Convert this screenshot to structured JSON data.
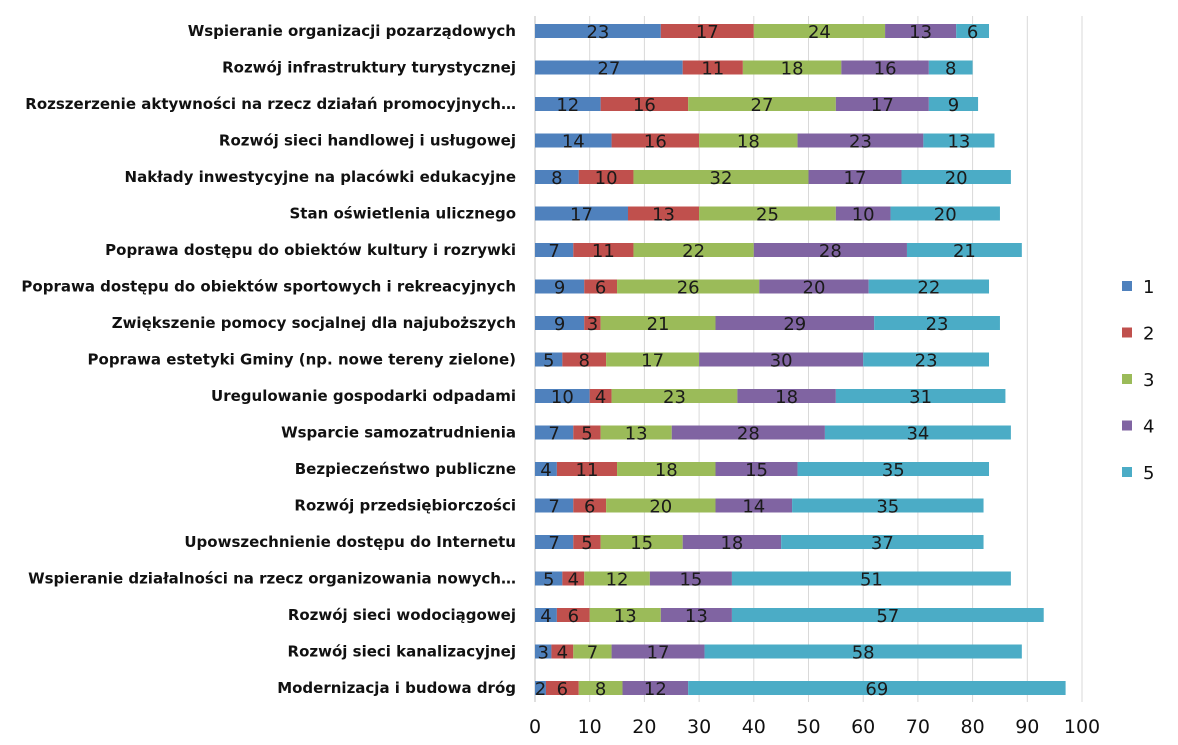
{
  "chart_data": {
    "type": "bar",
    "orientation": "horizontal",
    "stacked": true,
    "title": "",
    "xlabel": "",
    "ylabel": "",
    "xlim": [
      0,
      100
    ],
    "x_ticks": [
      0,
      10,
      20,
      30,
      40,
      50,
      60,
      70,
      80,
      90,
      100
    ],
    "grid": true,
    "legend_position": "right",
    "categories": [
      "Wspieranie organizacji pozarządowych",
      "Rozwój infrastruktury turystycznej",
      "Rozszerzenie aktywności na rzecz działań promocyjnych…",
      "Rozwój sieci handlowej i usługowej",
      "Nakłady inwestycyjne na placówki edukacyjne",
      "Stan oświetlenia ulicznego",
      "Poprawa dostępu do obiektów kultury i rozrywki",
      "Poprawa dostępu do obiektów sportowych i rekreacyjnych",
      "Zwiększenie pomocy socjalnej dla najuboższych",
      "Poprawa estetyki Gminy (np. nowe tereny zielone)",
      "Uregulowanie gospodarki odpadami",
      "Wsparcie samozatrudnienia",
      "Bezpieczeństwo publiczne",
      "Rozwój przedsiębiorczości",
      "Upowszechnienie dostępu do Internetu",
      "Wspieranie działalności na rzecz organizowania nowych…",
      "Rozwój sieci wodociągowej",
      "Rozwój sieci kanalizacyjnej",
      "Modernizacja i budowa dróg"
    ],
    "series": [
      {
        "name": "1",
        "color": "#4f81bd",
        "values": [
          23,
          27,
          12,
          14,
          8,
          17,
          7,
          9,
          9,
          5,
          10,
          7,
          4,
          7,
          7,
          5,
          4,
          3,
          2
        ]
      },
      {
        "name": "2",
        "color": "#c0504d",
        "values": [
          17,
          11,
          16,
          16,
          10,
          13,
          11,
          6,
          3,
          8,
          4,
          5,
          11,
          6,
          5,
          4,
          6,
          4,
          6
        ]
      },
      {
        "name": "3",
        "color": "#9bbb59",
        "values": [
          24,
          18,
          27,
          18,
          32,
          25,
          22,
          26,
          21,
          17,
          23,
          13,
          18,
          20,
          15,
          12,
          13,
          7,
          8
        ]
      },
      {
        "name": "4",
        "color": "#8064a2",
        "values": [
          13,
          16,
          17,
          23,
          17,
          10,
          28,
          20,
          29,
          30,
          18,
          28,
          15,
          14,
          18,
          15,
          13,
          17,
          12
        ]
      },
      {
        "name": "5",
        "color": "#4bacc6",
        "values": [
          6,
          8,
          9,
          13,
          20,
          20,
          21,
          22,
          23,
          23,
          31,
          34,
          35,
          35,
          37,
          51,
          57,
          58,
          69
        ]
      }
    ]
  }
}
